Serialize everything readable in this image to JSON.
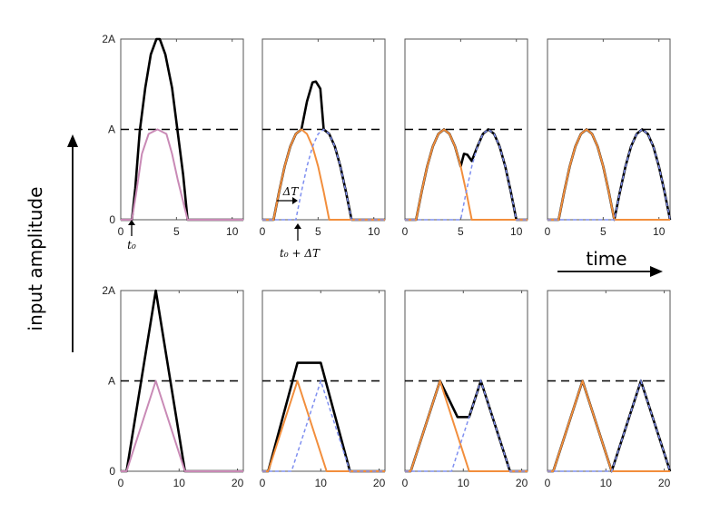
{
  "figure": {
    "ylabel": "input amplitude",
    "time_label": "time",
    "annotations": {
      "t0": "t₀",
      "t0_plus_dT": "t₀ + ΔT",
      "dT": "ΔT"
    },
    "colors": {
      "sum": "#000000",
      "first_pulse": "#f28e3c",
      "second_pulse": "#7f8ff0",
      "first_pulse_bottom_left": "#c98ab6",
      "threshold": "#000000",
      "frame": "#555555"
    }
  },
  "chart_data": [
    {
      "type": "line",
      "row": 1,
      "col": 1,
      "xlim": [
        0,
        11
      ],
      "xticks": [
        0,
        5,
        10
      ],
      "ylim": [
        0,
        2
      ],
      "yticks": [
        "0",
        "A",
        "2A"
      ],
      "threshold": 1,
      "pulse_shape": "half-sine",
      "pulse_width": 5,
      "t0": 1,
      "series": [
        {
          "role": "sum",
          "values": [
            [
              0,
              0
            ],
            [
              1,
              0
            ],
            [
              1.3,
              0.35
            ],
            [
              1.7,
              0.98
            ],
            [
              2.2,
              1.46
            ],
            [
              2.7,
              1.83
            ],
            [
              3.2,
              2.0
            ],
            [
              3.5,
              2.0
            ],
            [
              4.0,
              1.83
            ],
            [
              4.6,
              1.46
            ],
            [
              5.1,
              0.98
            ],
            [
              5.6,
              0.5
            ],
            [
              6,
              0
            ],
            [
              11,
              0
            ]
          ]
        },
        {
          "role": "first",
          "values": [
            [
              0,
              0
            ],
            [
              1,
              0
            ],
            [
              1.4,
              0.31
            ],
            [
              1.9,
              0.73
            ],
            [
              2.5,
              0.95
            ],
            [
              3.3,
              1.0
            ],
            [
              4.1,
              0.95
            ],
            [
              4.6,
              0.73
            ],
            [
              5.1,
              0.45
            ],
            [
              6,
              0
            ],
            [
              11,
              0
            ]
          ]
        }
      ]
    },
    {
      "type": "line",
      "row": 1,
      "col": 2,
      "xlim": [
        0,
        11
      ],
      "xticks": [
        0,
        5,
        10
      ],
      "ylim": [
        0,
        2
      ],
      "yticks": [],
      "threshold": 1,
      "delta_t": 2,
      "series": [
        {
          "role": "sum",
          "values": [
            [
              0,
              0
            ],
            [
              1,
              0
            ],
            [
              1.5,
              0.31
            ],
            [
              2,
              0.59
            ],
            [
              2.5,
              0.81
            ],
            [
              3,
              0.95
            ],
            [
              3.5,
              1.0
            ],
            [
              4.0,
              1.31
            ],
            [
              4.5,
              1.52
            ],
            [
              4.8,
              1.53
            ],
            [
              5.2,
              1.45
            ],
            [
              5.5,
              1.0
            ],
            [
              6,
              0.95
            ],
            [
              6.5,
              0.81
            ],
            [
              7,
              0.59
            ],
            [
              7.5,
              0.31
            ],
            [
              8,
              0
            ],
            [
              11,
              0
            ]
          ]
        },
        {
          "role": "first",
          "values": [
            [
              0,
              0
            ],
            [
              1,
              0
            ],
            [
              1.5,
              0.31
            ],
            [
              2,
              0.59
            ],
            [
              2.5,
              0.81
            ],
            [
              3,
              0.95
            ],
            [
              3.5,
              1.0
            ],
            [
              4,
              0.95
            ],
            [
              4.5,
              0.81
            ],
            [
              5,
              0.59
            ],
            [
              5.5,
              0.31
            ],
            [
              6,
              0
            ],
            [
              11,
              0
            ]
          ]
        },
        {
          "role": "second",
          "values": [
            [
              0,
              0
            ],
            [
              3,
              0
            ],
            [
              3.5,
              0.31
            ],
            [
              4,
              0.59
            ],
            [
              4.5,
              0.81
            ],
            [
              5,
              0.95
            ],
            [
              5.5,
              1.0
            ],
            [
              6,
              0.95
            ],
            [
              6.5,
              0.81
            ],
            [
              7,
              0.59
            ],
            [
              7.5,
              0.31
            ],
            [
              8,
              0
            ],
            [
              11,
              0
            ]
          ]
        }
      ]
    },
    {
      "type": "line",
      "row": 1,
      "col": 3,
      "xlim": [
        0,
        11
      ],
      "xticks": [
        0,
        5,
        10
      ],
      "ylim": [
        0,
        2
      ],
      "yticks": [],
      "threshold": 1,
      "series": [
        {
          "role": "sum",
          "values": [
            [
              0,
              0
            ],
            [
              1,
              0
            ],
            [
              1.5,
              0.31
            ],
            [
              2,
              0.59
            ],
            [
              2.5,
              0.81
            ],
            [
              3,
              0.95
            ],
            [
              3.5,
              1.0
            ],
            [
              4,
              0.95
            ],
            [
              4.5,
              0.81
            ],
            [
              5,
              0.59
            ],
            [
              5.3,
              0.73
            ],
            [
              5.6,
              0.72
            ],
            [
              6,
              0.65
            ],
            [
              6.5,
              0.81
            ],
            [
              7,
              0.95
            ],
            [
              7.5,
              1.0
            ],
            [
              8,
              0.95
            ],
            [
              8.5,
              0.81
            ],
            [
              9,
              0.59
            ],
            [
              9.5,
              0.31
            ],
            [
              10,
              0
            ],
            [
              11,
              0
            ]
          ]
        },
        {
          "role": "first",
          "values": [
            [
              0,
              0
            ],
            [
              1,
              0
            ],
            [
              1.5,
              0.31
            ],
            [
              2,
              0.59
            ],
            [
              2.5,
              0.81
            ],
            [
              3,
              0.95
            ],
            [
              3.5,
              1.0
            ],
            [
              4,
              0.95
            ],
            [
              4.5,
              0.81
            ],
            [
              5,
              0.59
            ],
            [
              5.5,
              0.31
            ],
            [
              6,
              0
            ],
            [
              11,
              0
            ]
          ]
        },
        {
          "role": "second",
          "values": [
            [
              0,
              0
            ],
            [
              5,
              0
            ],
            [
              5.5,
              0.31
            ],
            [
              6,
              0.59
            ],
            [
              6.5,
              0.81
            ],
            [
              7,
              0.95
            ],
            [
              7.5,
              1.0
            ],
            [
              8,
              0.95
            ],
            [
              8.5,
              0.81
            ],
            [
              9,
              0.59
            ],
            [
              9.5,
              0.31
            ],
            [
              10,
              0
            ],
            [
              11,
              0
            ]
          ]
        }
      ]
    },
    {
      "type": "line",
      "row": 1,
      "col": 4,
      "xlim": [
        0,
        11
      ],
      "xticks": [
        0,
        5,
        10
      ],
      "ylim": [
        0,
        2
      ],
      "yticks": [],
      "threshold": 1,
      "series": [
        {
          "role": "sum",
          "values": [
            [
              0,
              0
            ],
            [
              1,
              0
            ],
            [
              1.5,
              0.31
            ],
            [
              2,
              0.59
            ],
            [
              2.5,
              0.81
            ],
            [
              3,
              0.95
            ],
            [
              3.5,
              1.0
            ],
            [
              4,
              0.95
            ],
            [
              4.5,
              0.81
            ],
            [
              5,
              0.59
            ],
            [
              5.5,
              0.31
            ],
            [
              6,
              0
            ],
            [
              6.5,
              0.31
            ],
            [
              7,
              0.59
            ],
            [
              7.5,
              0.81
            ],
            [
              8,
              0.95
            ],
            [
              8.5,
              1.0
            ],
            [
              9,
              0.95
            ],
            [
              9.5,
              0.81
            ],
            [
              10,
              0.59
            ],
            [
              10.5,
              0.31
            ],
            [
              11,
              0
            ]
          ]
        },
        {
          "role": "first",
          "values": [
            [
              0,
              0
            ],
            [
              1,
              0
            ],
            [
              1.5,
              0.31
            ],
            [
              2,
              0.59
            ],
            [
              2.5,
              0.81
            ],
            [
              3,
              0.95
            ],
            [
              3.5,
              1.0
            ],
            [
              4,
              0.95
            ],
            [
              4.5,
              0.81
            ],
            [
              5,
              0.59
            ],
            [
              5.5,
              0.31
            ],
            [
              6,
              0
            ],
            [
              11,
              0
            ]
          ]
        },
        {
          "role": "second",
          "values": [
            [
              0,
              0
            ],
            [
              6,
              0
            ],
            [
              6.5,
              0.31
            ],
            [
              7,
              0.59
            ],
            [
              7.5,
              0.81
            ],
            [
              8,
              0.95
            ],
            [
              8.5,
              1.0
            ],
            [
              9,
              0.95
            ],
            [
              9.5,
              0.81
            ],
            [
              10,
              0.59
            ],
            [
              10.5,
              0.31
            ],
            [
              11,
              0
            ]
          ]
        }
      ]
    },
    {
      "type": "line",
      "row": 2,
      "col": 1,
      "xlim": [
        0,
        21
      ],
      "xticks": [
        0,
        10,
        20
      ],
      "ylim": [
        0,
        2
      ],
      "yticks": [
        "0",
        "A",
        "2A"
      ],
      "threshold": 1,
      "pulse_shape": "triangle",
      "pulse_width": 10,
      "series": [
        {
          "role": "sum",
          "values": [
            [
              0,
              0
            ],
            [
              1,
              0
            ],
            [
              6,
              2
            ],
            [
              11,
              0
            ],
            [
              21,
              0
            ]
          ]
        },
        {
          "role": "first",
          "values": [
            [
              0,
              0
            ],
            [
              1,
              0
            ],
            [
              6,
              1
            ],
            [
              11,
              0
            ],
            [
              21,
              0
            ]
          ]
        }
      ]
    },
    {
      "type": "line",
      "row": 2,
      "col": 2,
      "xlim": [
        0,
        21
      ],
      "xticks": [
        0,
        10,
        20
      ],
      "ylim": [
        0,
        2
      ],
      "yticks": [],
      "threshold": 1,
      "series": [
        {
          "role": "sum",
          "values": [
            [
              0,
              0
            ],
            [
              1,
              0
            ],
            [
              6,
              1.2
            ],
            [
              6.5,
              1.2
            ],
            [
              9.5,
              1.2
            ],
            [
              10,
              1.2
            ],
            [
              15,
              0
            ],
            [
              21,
              0
            ]
          ]
        },
        {
          "role": "first",
          "values": [
            [
              0,
              0
            ],
            [
              1,
              0
            ],
            [
              6,
              1
            ],
            [
              11,
              0
            ],
            [
              21,
              0
            ]
          ]
        },
        {
          "role": "second",
          "values": [
            [
              0,
              0
            ],
            [
              5,
              0
            ],
            [
              10,
              1
            ],
            [
              15,
              0
            ],
            [
              21,
              0
            ]
          ]
        }
      ]
    },
    {
      "type": "line",
      "row": 2,
      "col": 3,
      "xlim": [
        0,
        21
      ],
      "xticks": [
        0,
        10,
        20
      ],
      "ylim": [
        0,
        2
      ],
      "yticks": [],
      "threshold": 1,
      "series": [
        {
          "role": "sum",
          "values": [
            [
              0,
              0
            ],
            [
              1,
              0
            ],
            [
              6,
              1
            ],
            [
              9,
              0.6
            ],
            [
              11,
              0.6
            ],
            [
              13,
              1
            ],
            [
              18,
              0
            ],
            [
              21,
              0
            ]
          ]
        },
        {
          "role": "first",
          "values": [
            [
              0,
              0
            ],
            [
              1,
              0
            ],
            [
              6,
              1
            ],
            [
              11,
              0
            ],
            [
              21,
              0
            ]
          ]
        },
        {
          "role": "second",
          "values": [
            [
              0,
              0
            ],
            [
              8,
              0
            ],
            [
              13,
              1
            ],
            [
              18,
              0
            ],
            [
              21,
              0
            ]
          ]
        }
      ]
    },
    {
      "type": "line",
      "row": 2,
      "col": 4,
      "xlim": [
        0,
        21
      ],
      "xticks": [
        0,
        10,
        20
      ],
      "ylim": [
        0,
        2
      ],
      "yticks": [],
      "threshold": 1,
      "series": [
        {
          "role": "sum",
          "values": [
            [
              0,
              0
            ],
            [
              1,
              0
            ],
            [
              6,
              1
            ],
            [
              11,
              0
            ],
            [
              16,
              1
            ],
            [
              21,
              0
            ]
          ]
        },
        {
          "role": "first",
          "values": [
            [
              0,
              0
            ],
            [
              1,
              0
            ],
            [
              6,
              1
            ],
            [
              11,
              0
            ],
            [
              21,
              0
            ]
          ]
        },
        {
          "role": "second",
          "values": [
            [
              0,
              0
            ],
            [
              11,
              0
            ],
            [
              16,
              1
            ],
            [
              21,
              0
            ]
          ]
        }
      ]
    }
  ]
}
